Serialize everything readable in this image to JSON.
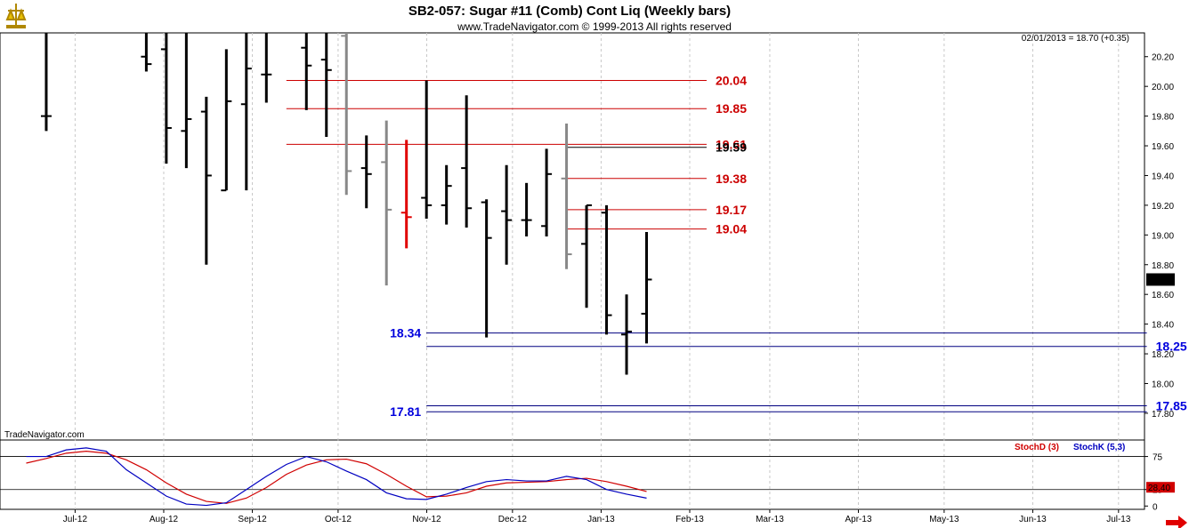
{
  "header": {
    "title": "SB2-057:  Sugar #11 (Comb) Cont Liq  (Weekly bars)",
    "copyright": "www.TradeNavigator.com © 1999-2013 All rights reserved",
    "last_quote": "02/01/2013 = 18.70 (+0.35)",
    "watermark": "TradeNavigator.com"
  },
  "colors": {
    "bar": "#000000",
    "down_bar": "#e00000",
    "gray_bar": "#888888",
    "resistance": "#cc0000",
    "support": "#000080",
    "support_text": "#0000dd",
    "stoch_d": "#d00000",
    "stoch_k": "#0000c0",
    "grid": "#c8c8c8",
    "stoch_last_bg": "#d00000"
  },
  "chart_data": [
    {
      "type": "ohlc",
      "title": "SB2-057:  Sugar #11 (Comb) Cont Liq  (Weekly bars)",
      "y_ticks": [
        "20.20",
        "20.00",
        "19.80",
        "19.60",
        "19.40",
        "19.20",
        "19.00",
        "18.80",
        "18.60",
        "18.40",
        "18.20",
        "18.00",
        "17.80"
      ],
      "ylim": [
        17.62,
        20.36
      ],
      "last_price_label": "18.70",
      "x_labels": [
        "Jul-12",
        "Aug-12",
        "Sep-12",
        "Oct-12",
        "Nov-12",
        "Dec-12",
        "Jan-13",
        "Feb-13",
        "Mar-13",
        "Apr-13",
        "May-13",
        "Jun-13",
        "Jul-13"
      ],
      "bars": [
        {
          "date": "2012-06-29",
          "high": 20.4,
          "low": 19.7,
          "open": 19.8,
          "close": 19.8,
          "color": "bar"
        },
        {
          "date": "2012-08-03",
          "high": 20.4,
          "low": 20.1,
          "open": 20.2,
          "close": 20.15,
          "color": "bar"
        },
        {
          "date": "2012-08-10",
          "high": 20.4,
          "low": 19.48,
          "open": 20.25,
          "close": 19.72,
          "color": "bar"
        },
        {
          "date": "2012-08-17",
          "high": 20.4,
          "low": 19.45,
          "open": 19.7,
          "close": 19.78,
          "color": "bar"
        },
        {
          "date": "2012-08-24",
          "high": 19.93,
          "low": 18.8,
          "open": 19.83,
          "close": 19.4,
          "color": "bar"
        },
        {
          "date": "2012-08-31",
          "high": 20.25,
          "low": 19.3,
          "open": 19.3,
          "close": 19.9,
          "color": "bar"
        },
        {
          "date": "2012-09-07",
          "high": 20.4,
          "low": 19.3,
          "open": 19.88,
          "close": 20.12,
          "color": "bar"
        },
        {
          "date": "2012-09-14",
          "high": 20.4,
          "low": 19.89,
          "open": 20.08,
          "close": 20.08,
          "color": "bar"
        },
        {
          "date": "2012-09-28",
          "high": 20.4,
          "low": 19.84,
          "open": 20.26,
          "close": 20.14,
          "color": "bar"
        },
        {
          "date": "2012-10-05",
          "high": 20.4,
          "low": 19.66,
          "open": 20.18,
          "close": 20.11,
          "color": "bar"
        },
        {
          "date": "2012-10-12",
          "high": 20.4,
          "low": 19.27,
          "open": 20.34,
          "close": 19.43,
          "color": "gray_bar"
        },
        {
          "date": "2012-10-19",
          "high": 19.67,
          "low": 19.18,
          "open": 19.45,
          "close": 19.41,
          "color": "bar"
        },
        {
          "date": "2012-10-26",
          "high": 19.77,
          "low": 18.66,
          "open": 19.49,
          "close": 19.17,
          "color": "gray_bar"
        },
        {
          "date": "2012-11-02",
          "high": 19.64,
          "low": 18.91,
          "open": 19.15,
          "close": 19.12,
          "color": "down_bar"
        },
        {
          "date": "2012-11-09",
          "high": 20.04,
          "low": 19.11,
          "open": 19.25,
          "close": 19.2,
          "color": "bar"
        },
        {
          "date": "2012-11-16",
          "high": 19.47,
          "low": 19.07,
          "open": 19.2,
          "close": 19.33,
          "color": "bar"
        },
        {
          "date": "2012-11-23",
          "high": 19.94,
          "low": 19.05,
          "open": 19.45,
          "close": 19.18,
          "color": "bar"
        },
        {
          "date": "2012-11-30",
          "high": 19.24,
          "low": 18.31,
          "open": 19.22,
          "close": 18.98,
          "color": "bar"
        },
        {
          "date": "2012-12-07",
          "high": 19.47,
          "low": 18.8,
          "open": 19.16,
          "close": 19.1,
          "color": "bar"
        },
        {
          "date": "2012-12-14",
          "high": 19.35,
          "low": 18.99,
          "open": 19.1,
          "close": 19.1,
          "color": "bar"
        },
        {
          "date": "2012-12-21",
          "high": 19.58,
          "low": 18.99,
          "open": 19.06,
          "close": 19.41,
          "color": "bar"
        },
        {
          "date": "2012-12-28",
          "high": 19.75,
          "low": 18.77,
          "open": 19.38,
          "close": 18.87,
          "color": "gray_bar"
        },
        {
          "date": "2013-01-04",
          "high": 19.2,
          "low": 18.51,
          "open": 18.94,
          "close": 19.2,
          "color": "bar"
        },
        {
          "date": "2013-01-11",
          "high": 19.2,
          "low": 18.33,
          "open": 19.15,
          "close": 18.46,
          "color": "bar"
        },
        {
          "date": "2013-01-18",
          "high": 18.6,
          "low": 18.06,
          "open": 18.33,
          "close": 18.35,
          "color": "bar"
        },
        {
          "date": "2013-01-25",
          "high": 19.02,
          "low": 18.27,
          "open": 18.47,
          "close": 18.7,
          "color": "bar"
        }
      ],
      "levels": [
        {
          "value": 20.04,
          "label": "20.04",
          "side": "right",
          "color": "resistance",
          "x_from": "2012-09-21",
          "x_to": "2013-02-15"
        },
        {
          "value": 19.85,
          "label": "19.85",
          "side": "right",
          "color": "resistance",
          "x_from": "2012-09-21",
          "x_to": "2013-02-15"
        },
        {
          "value": 19.61,
          "label": "19.61",
          "side": "right",
          "color": "resistance",
          "x_from": "2012-09-21",
          "x_to": "2013-02-15"
        },
        {
          "value": 19.59,
          "label": "19.59",
          "side": "right",
          "color": "bar",
          "x_from": "2012-12-28",
          "x_to": "2013-02-15"
        },
        {
          "value": 19.38,
          "label": "19.38",
          "side": "right",
          "color": "resistance",
          "x_from": "2012-12-28",
          "x_to": "2013-02-15"
        },
        {
          "value": 19.17,
          "label": "19.17",
          "side": "right",
          "color": "resistance",
          "x_from": "2012-12-28",
          "x_to": "2013-02-15"
        },
        {
          "value": 19.04,
          "label": "19.04",
          "side": "right",
          "color": "resistance",
          "x_from": "2012-12-28",
          "x_to": "2013-02-15"
        },
        {
          "value": 18.34,
          "label": "18.34",
          "side": "left",
          "color": "support",
          "x_from": "2012-11-09",
          "x_to": "2013-07-19"
        },
        {
          "value": 18.25,
          "label": "18.25",
          "side": "right",
          "color": "support",
          "x_from": "2012-11-09",
          "x_to": "2013-07-19"
        },
        {
          "value": 17.85,
          "label": "17.85",
          "side": "right",
          "color": "support",
          "x_from": "2012-11-09",
          "x_to": "2013-07-19"
        },
        {
          "value": 17.81,
          "label": "17.81",
          "side": "left",
          "color": "support",
          "x_from": "2012-11-09",
          "x_to": "2013-07-19"
        }
      ]
    },
    {
      "type": "line",
      "title": "",
      "legend": [
        "StochD (3)",
        "StochK (5,3)"
      ],
      "y_ticks": [
        "75",
        "25",
        "0"
      ],
      "ylim": [
        -5,
        100
      ],
      "reference_lines": [
        75,
        25
      ],
      "last_value_label": "28.40",
      "x": [
        "2012-06-22",
        "2012-06-29",
        "2012-07-06",
        "2012-07-13",
        "2012-07-20",
        "2012-07-27",
        "2012-08-03",
        "2012-08-10",
        "2012-08-17",
        "2012-08-24",
        "2012-08-31",
        "2012-09-07",
        "2012-09-14",
        "2012-09-21",
        "2012-09-28",
        "2012-10-05",
        "2012-10-12",
        "2012-10-19",
        "2012-10-26",
        "2012-11-02",
        "2012-11-09",
        "2012-11-16",
        "2012-11-23",
        "2012-11-30",
        "2012-12-07",
        "2012-12-14",
        "2012-12-21",
        "2012-12-28",
        "2013-01-04",
        "2013-01-11",
        "2013-01-18",
        "2013-01-25"
      ],
      "series": [
        {
          "name": "StochD (3)",
          "color": "stoch_d",
          "values": [
            65,
            72,
            80,
            83,
            80,
            70,
            55,
            35,
            18,
            7,
            4,
            12,
            28,
            48,
            62,
            70,
            71,
            64,
            48,
            30,
            14,
            15,
            20,
            30,
            35,
            36,
            37,
            40,
            42,
            37,
            30,
            22
          ]
        },
        {
          "name": "StochK (5,3)",
          "color": "stoch_k",
          "values": [
            75,
            75,
            85,
            88,
            83,
            55,
            35,
            15,
            3,
            1,
            5,
            25,
            45,
            63,
            75,
            67,
            53,
            40,
            20,
            11,
            10,
            18,
            28,
            37,
            40,
            38,
            38,
            45,
            40,
            25,
            18,
            12
          ]
        }
      ]
    }
  ]
}
